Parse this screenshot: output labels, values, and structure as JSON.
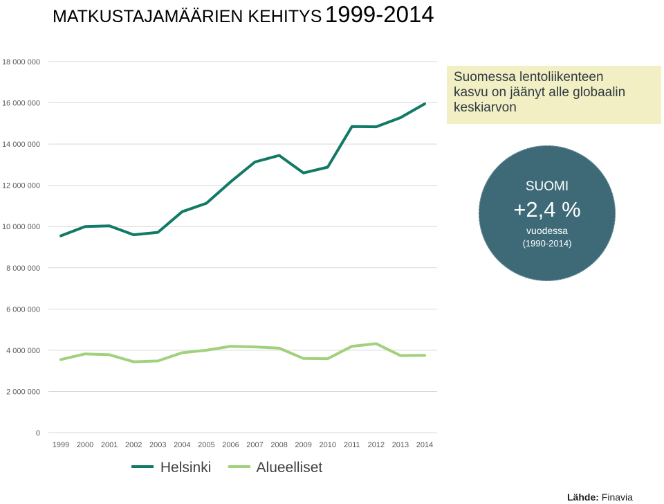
{
  "title": {
    "part1": "MATKUSTAJAMÄÄRIEN KEHITYS",
    "part2": "1999-2014"
  },
  "note": {
    "lines": [
      "Suomessa lentoliikenteen",
      "kasvu on jäänyt alle globaalin",
      "keskiarvon"
    ]
  },
  "circle": {
    "country": "SUOMI",
    "value": "+2,4 %",
    "per": "vuodessa",
    "period": "(1990-2014)"
  },
  "source": {
    "label": "Lähde:",
    "name": "Finavia"
  },
  "chart_data": {
    "type": "line",
    "title": "",
    "xlabel": "",
    "ylabel": "",
    "ylim": [
      0,
      18000000
    ],
    "yticks": [
      0,
      2000000,
      4000000,
      6000000,
      8000000,
      10000000,
      12000000,
      14000000,
      16000000,
      18000000
    ],
    "ytick_labels": [
      "0",
      "2 000 000",
      "4 000 000",
      "6 000 000",
      "8 000 000",
      "10 000 000",
      "12 000 000",
      "14 000 000",
      "16 000 000",
      "18 000 000"
    ],
    "categories": [
      "1999",
      "2000",
      "2001",
      "2002",
      "2003",
      "2004",
      "2005",
      "2006",
      "2007",
      "2008",
      "2009",
      "2010",
      "2011",
      "2012",
      "2013",
      "2014"
    ],
    "grid": true,
    "legend_position": "bottom",
    "series": [
      {
        "name": "Helsinki",
        "color": "#117a65",
        "values": [
          9550000,
          10000000,
          10030000,
          9600000,
          9720000,
          10720000,
          11130000,
          12170000,
          13130000,
          13450000,
          12600000,
          12880000,
          14850000,
          14840000,
          15280000,
          15950000
        ]
      },
      {
        "name": "Alueelliset",
        "color": "#a0d17c",
        "values": [
          3550000,
          3820000,
          3780000,
          3440000,
          3480000,
          3880000,
          4000000,
          4190000,
          4160000,
          4100000,
          3600000,
          3590000,
          4190000,
          4320000,
          3740000,
          3750000
        ]
      }
    ]
  }
}
